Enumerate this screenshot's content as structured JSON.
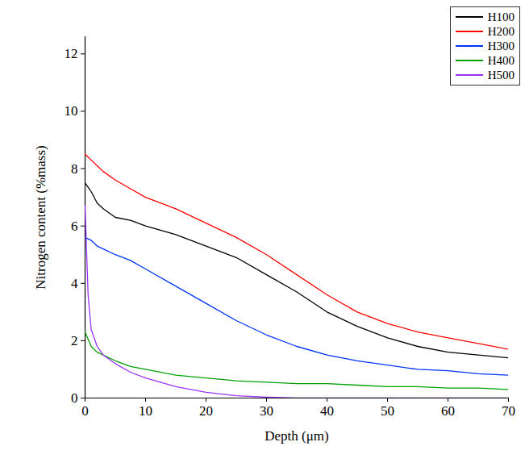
{
  "chart_data": {
    "type": "line",
    "x_label": "Depth (μm)",
    "y_label": "Nitrogen content (%mass)",
    "x": [
      0,
      0.5,
      1,
      2,
      3,
      5,
      7.5,
      10,
      15,
      20,
      25,
      30,
      35,
      40,
      45,
      50,
      55,
      60,
      65,
      70
    ],
    "series": [
      {
        "name": "H100",
        "color": "#000000",
        "values": [
          7.5,
          7.35,
          7.2,
          6.8,
          6.6,
          6.3,
          6.2,
          6.0,
          5.7,
          5.3,
          4.9,
          4.3,
          3.7,
          3.0,
          2.5,
          2.1,
          1.8,
          1.6,
          1.5,
          1.4
        ]
      },
      {
        "name": "H200",
        "color": "#ff0000",
        "values": [
          8.5,
          8.4,
          8.3,
          8.1,
          7.9,
          7.6,
          7.3,
          7.0,
          6.6,
          6.1,
          5.6,
          5.0,
          4.3,
          3.6,
          3.0,
          2.6,
          2.3,
          2.1,
          1.9,
          1.7
        ]
      },
      {
        "name": "H300",
        "color": "#0033ff",
        "values": [
          5.6,
          5.55,
          5.5,
          5.3,
          5.2,
          5.0,
          4.8,
          4.5,
          3.9,
          3.3,
          2.7,
          2.2,
          1.8,
          1.5,
          1.3,
          1.15,
          1.0,
          0.95,
          0.85,
          0.8
        ]
      },
      {
        "name": "H400",
        "color": "#00a000",
        "values": [
          2.3,
          2.05,
          1.8,
          1.6,
          1.5,
          1.3,
          1.1,
          1.0,
          0.8,
          0.7,
          0.6,
          0.55,
          0.5,
          0.5,
          0.45,
          0.4,
          0.4,
          0.35,
          0.35,
          0.3
        ]
      },
      {
        "name": "H500",
        "color": "#9933ff",
        "values": [
          6.7,
          3.6,
          2.4,
          1.8,
          1.5,
          1.2,
          0.9,
          0.7,
          0.4,
          0.2,
          0.08,
          0.03,
          0,
          0,
          0,
          0,
          0,
          0,
          0,
          0
        ]
      }
    ],
    "xlim": [
      0,
      70
    ],
    "xticks": [
      0,
      10,
      20,
      30,
      40,
      50,
      60,
      70
    ],
    "ylim": [
      0,
      12.6
    ],
    "yticks": [
      0,
      2,
      4,
      6,
      8,
      10,
      12
    ],
    "legend": "upper right",
    "grid": false
  }
}
